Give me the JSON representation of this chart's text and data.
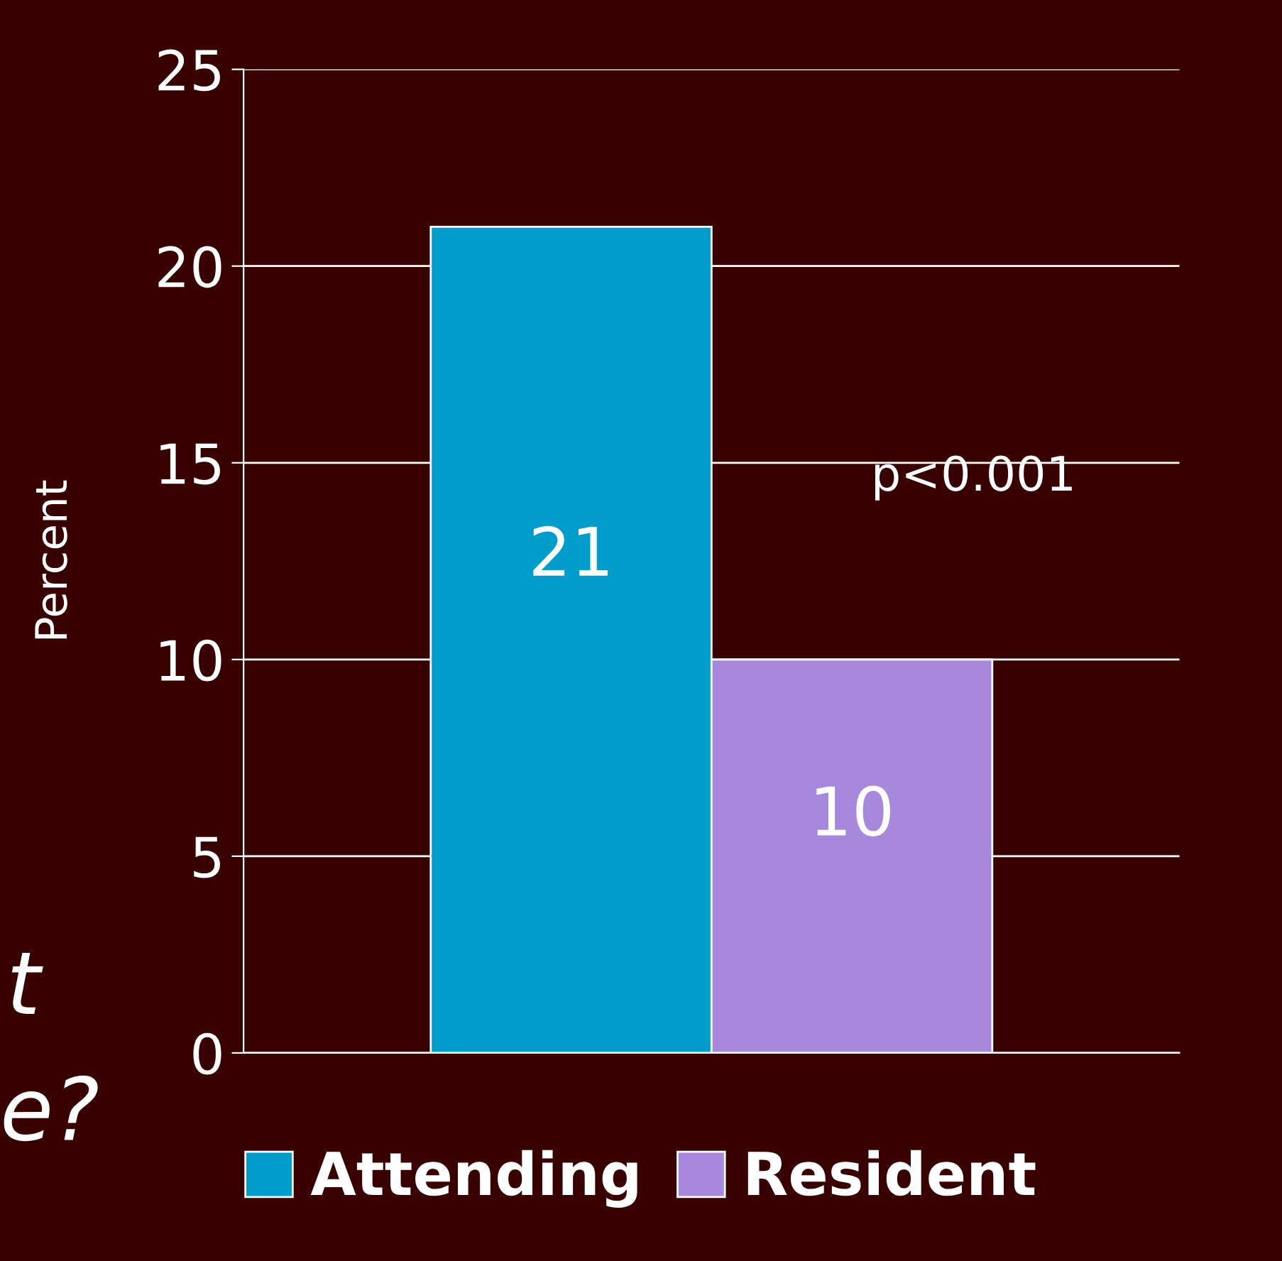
{
  "chart_data": {
    "type": "bar",
    "ylabel": "Percent",
    "categories": [
      null
    ],
    "series": [
      {
        "name": "Attending",
        "color": "#009ccc",
        "values": [
          21
        ]
      },
      {
        "name": "Resident",
        "color": "#a888dc",
        "values": [
          10
        ]
      }
    ],
    "ylim": [
      0,
      25
    ],
    "yticks": [
      0,
      5,
      10,
      15,
      20,
      25
    ],
    "grid": "y",
    "legend": "bottom",
    "data_labels": true,
    "annotations": [
      {
        "text": "p<0.001"
      },
      {
        "text": "t"
      },
      {
        "text": "e?"
      }
    ]
  }
}
